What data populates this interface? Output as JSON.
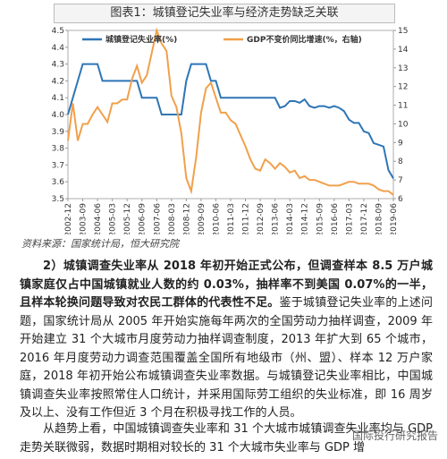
{
  "figure_title": "图表1：城镇登记失业率与经济走势缺乏关联",
  "chart_data": {
    "type": "line",
    "categories": [
      "2002-12",
      null,
      null,
      "2003-09",
      null,
      null,
      "2004-06",
      null,
      null,
      "2005-03",
      null,
      null,
      "2005-12",
      null,
      null,
      "2006-09",
      null,
      null,
      "2007-06",
      null,
      null,
      "2008-03",
      null,
      null,
      "2008-12",
      null,
      null,
      "2009-09",
      null,
      null,
      "2010-06",
      null,
      null,
      "2011-03",
      null,
      null,
      "2011-12",
      null,
      null,
      "2012-09",
      null,
      null,
      "2013-06",
      null,
      null,
      "2014-03",
      null,
      null,
      "2014-12",
      null,
      null,
      "2015-09",
      null,
      null,
      "2016-06",
      null,
      null,
      "2017-03",
      null,
      null,
      "2017-12",
      null,
      null,
      "2018-09",
      null,
      null,
      "2019-06"
    ],
    "series": [
      {
        "name": "城镇登记失业率(%)",
        "color": "#2e75b6",
        "axis": "y",
        "values": [
          4.0,
          4.1,
          4.2,
          4.3,
          4.3,
          4.3,
          4.3,
          4.2,
          4.2,
          4.2,
          4.2,
          4.2,
          4.2,
          4.2,
          4.2,
          4.1,
          4.1,
          4.1,
          4.1,
          4.0,
          4.0,
          4.0,
          4.0,
          4.0,
          4.2,
          4.3,
          4.3,
          4.3,
          4.3,
          4.2,
          4.2,
          4.1,
          4.1,
          4.1,
          4.1,
          4.1,
          4.1,
          4.1,
          4.1,
          4.1,
          4.1,
          4.1,
          4.1,
          4.04,
          4.05,
          4.08,
          4.08,
          4.07,
          4.09,
          4.05,
          4.04,
          4.05,
          4.05,
          4.04,
          4.05,
          4.04,
          4.02,
          3.97,
          3.95,
          3.95,
          3.9,
          3.89,
          3.83,
          3.82,
          3.81,
          3.67,
          3.62
        ]
      },
      {
        "name": "GDP不变价同比增速(%，右轴)",
        "color": "#f0a04b",
        "axis": "y2",
        "values": [
          9.1,
          11.1,
          9.1,
          10.0,
          10.0,
          10.5,
          10.9,
          10.5,
          10.1,
          11.1,
          11.1,
          11.3,
          11.3,
          12.4,
          13.1,
          12.2,
          12.6,
          13.8,
          15.0,
          14.3,
          13.9,
          11.5,
          10.9,
          9.5,
          7.1,
          6.4,
          8.2,
          10.6,
          11.9,
          12.2,
          11.4,
          10.6,
          10.6,
          10.2,
          10.0,
          9.4,
          8.8,
          8.1,
          7.6,
          7.5,
          8.1,
          7.9,
          7.6,
          7.9,
          7.7,
          7.4,
          7.5,
          7.1,
          7.2,
          7.0,
          7.0,
          6.9,
          6.8,
          6.7,
          6.7,
          6.7,
          6.8,
          6.9,
          6.9,
          6.8,
          6.8,
          6.8,
          6.7,
          6.5,
          6.4,
          6.4,
          6.2
        ]
      }
    ],
    "ylim": [
      3.5,
      4.5
    ],
    "yticks": [
      3.5,
      3.6,
      3.7,
      3.8,
      3.9,
      {
        "value": 4,
        "label": "4.0"
      },
      4.1,
      4.2,
      4.3,
      4.4,
      4.5
    ],
    "y2lim": [
      6,
      15
    ],
    "y2ticks": [
      6,
      7,
      8,
      9,
      10,
      11,
      12,
      13,
      14,
      15
    ],
    "legend": "top"
  },
  "source": "资料来源：国家统计局，恒大研究院",
  "paragraphs": [
    {
      "bold": "2）城镇调查失业率从 2018 年初开始正式公布，但调查样本 8.5 万户城镇家庭仅占中国城镇就业人数的约 0.03%，抽样率不到美国 0.07%的一半，且样本轮换问题导致对农民工群体的代表性不足。",
      "text": "鉴于城镇登记失业率的上述问题，国家统计局从 2005 年开始实施每年两次的全国劳动力抽样调查，2009 年开始建立 31 个大城市月度劳动力抽样调查制度，2013 年扩大到 65 个城市，2016 年月度劳动力调查范围覆盖全国所有地级市（州、盟）、样本 12 万户家庭，2018 年初开始公布城镇调查失业率数据。与城镇登记失业率相比，中国城镇调查失业率按照常住人口统计，并采用国际劳工组织的失业标准，即 16 周岁及以上、没有工作但近 3 个月在积极寻找工作的人员。"
    },
    {
      "text": "从趋势上看，中国城镇调查失业率和 31 个大城市城镇调查失业率均与 GDP 走势关联微弱，数据时期相对较长的 31 个大城市失业率与 GDP 增"
    }
  ],
  "watermark": "国际投行研究报告"
}
